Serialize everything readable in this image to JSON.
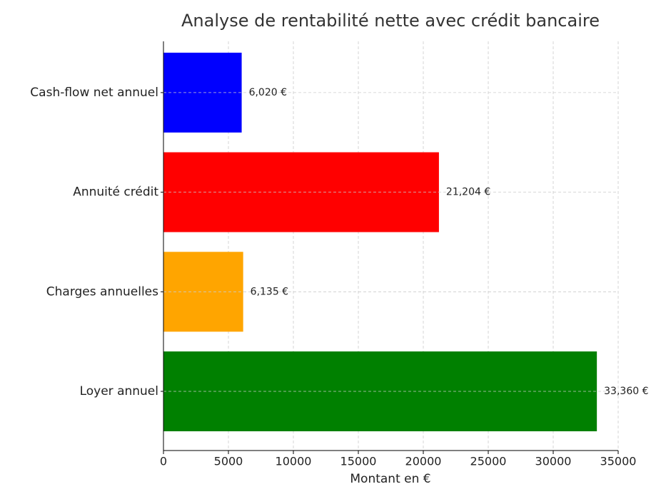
{
  "chart_data": {
    "type": "barh",
    "title": "Analyse de rentabilité nette avec crédit bancaire",
    "xlabel": "Montant en €",
    "categories": [
      "Loyer annuel",
      "Charges annuelles",
      "Annuité crédit",
      "Cash-flow net annuel"
    ],
    "values": [
      33360,
      6135,
      21204,
      6020
    ],
    "value_labels": [
      "33,360 €",
      "6,135 €",
      "21,204 €",
      "6,020 €"
    ],
    "colors": [
      "#008000",
      "#ffa500",
      "#ff0000",
      "#0000ff"
    ],
    "xlim": [
      0,
      35000
    ],
    "xticks": [
      0,
      5000,
      10000,
      15000,
      20000,
      25000,
      30000,
      35000
    ],
    "grid": true
  }
}
